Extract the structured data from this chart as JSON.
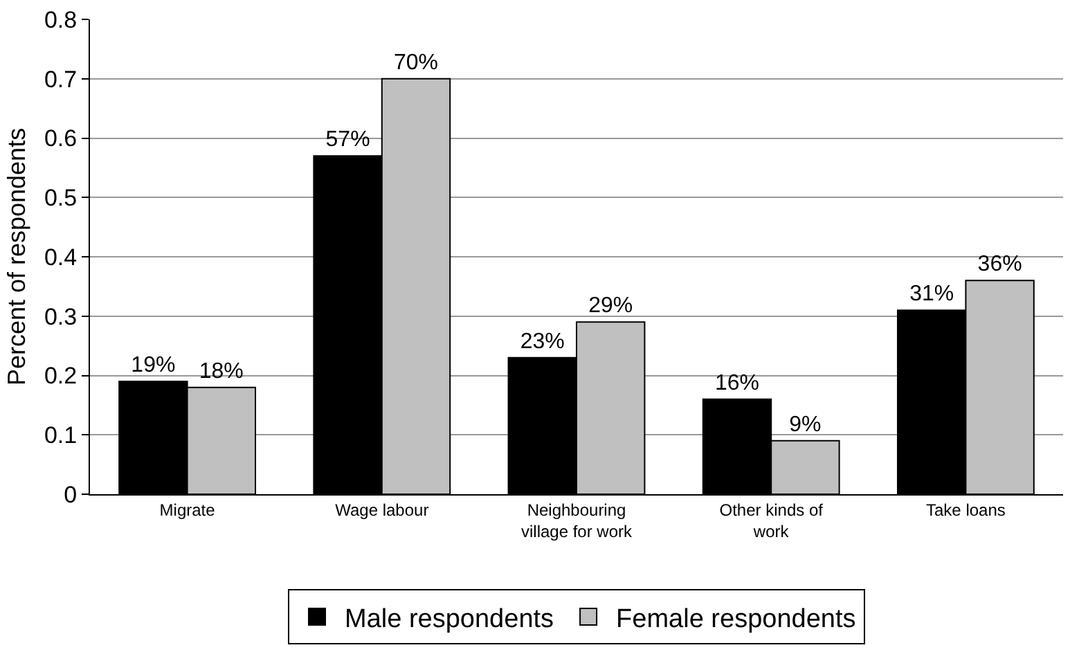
{
  "chart_data": {
    "type": "bar",
    "ylabel": "Percent of respondents",
    "categories": [
      "Migrate",
      "Wage labour",
      "Neighbouring village for work",
      "Other kinds of work",
      "Take loans"
    ],
    "series": [
      {
        "name": "Male respondents",
        "color": "#000000",
        "values": [
          0.19,
          0.57,
          0.23,
          0.16,
          0.31
        ],
        "value_labels": [
          "19%",
          "57%",
          "23%",
          "16%",
          "31%"
        ]
      },
      {
        "name": "Female respondents",
        "color": "#c0c0c0",
        "values": [
          0.18,
          0.7,
          0.29,
          0.09,
          0.36
        ],
        "value_labels": [
          "18%",
          "70%",
          "29%",
          "9%",
          "36%"
        ]
      }
    ],
    "ylim": [
      0,
      0.8
    ],
    "yticks": [
      {
        "value": 0,
        "label": "0"
      },
      0.1,
      0.2,
      0.3,
      0.4,
      0.5,
      0.6,
      0.7,
      0.8
    ],
    "grid": "y",
    "legend": "bottom"
  }
}
